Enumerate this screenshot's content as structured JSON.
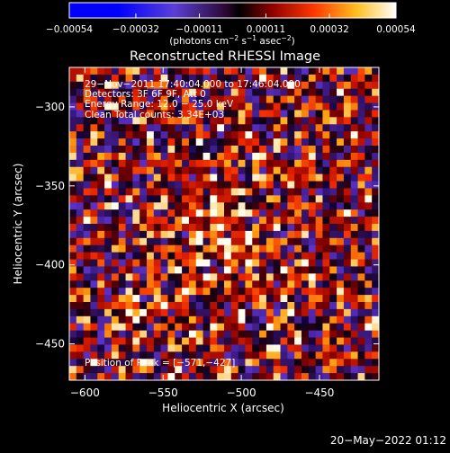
{
  "chart_data": {
    "type": "heatmap",
    "title": "Reconstructed RHESSI Image",
    "xlabel": "Heliocentric X (arcsec)",
    "ylabel": "Heliocentric Y (arcsec)",
    "xlim": [
      -610,
      -412
    ],
    "ylim": [
      -473,
      -275
    ],
    "xticks": [
      "−600",
      "−550",
      "−500",
      "−450"
    ],
    "xtick_values": [
      -600,
      -550,
      -500,
      -450
    ],
    "yticks": [
      "−300",
      "−350",
      "−400",
      "−450"
    ],
    "ytick_values": [
      -300,
      -350,
      -400,
      -450
    ],
    "colorbar": {
      "min": -0.00054,
      "max": 0.00054,
      "ticks": [
        "−0.00054",
        "−0.00032",
        "−0.00011",
        "0.00011",
        "0.00032",
        "0.00054"
      ],
      "tick_values": [
        -0.00054,
        -0.00032,
        -0.00011,
        0.00011,
        0.00032,
        0.00054
      ],
      "units_prefix": "(photons cm",
      "units_sup1": "−2",
      "units_mid1": " s",
      "units_sup2": "−1",
      "units_mid2": " asec",
      "units_sup3": "−2",
      "units_suffix": ")"
    },
    "peak": {
      "x": -571,
      "y": -427
    },
    "annotations": [
      "29−Nov−2011 17:40:04.000 to 17:46:04.000",
      "Detectors: 3F 6F 9F, Att 0",
      "Energy Range: 12.0 − 25.0 keV",
      "Clean     Total counts: 3.34E+03"
    ],
    "peak_label": "Position of Peak = [−571,−427]",
    "grid": false
  },
  "footer": {
    "timestamp": "20−May−2022 01:12"
  },
  "colors": {
    "background": "#000000",
    "axes": "#ffffff",
    "text": "#ffffff"
  }
}
